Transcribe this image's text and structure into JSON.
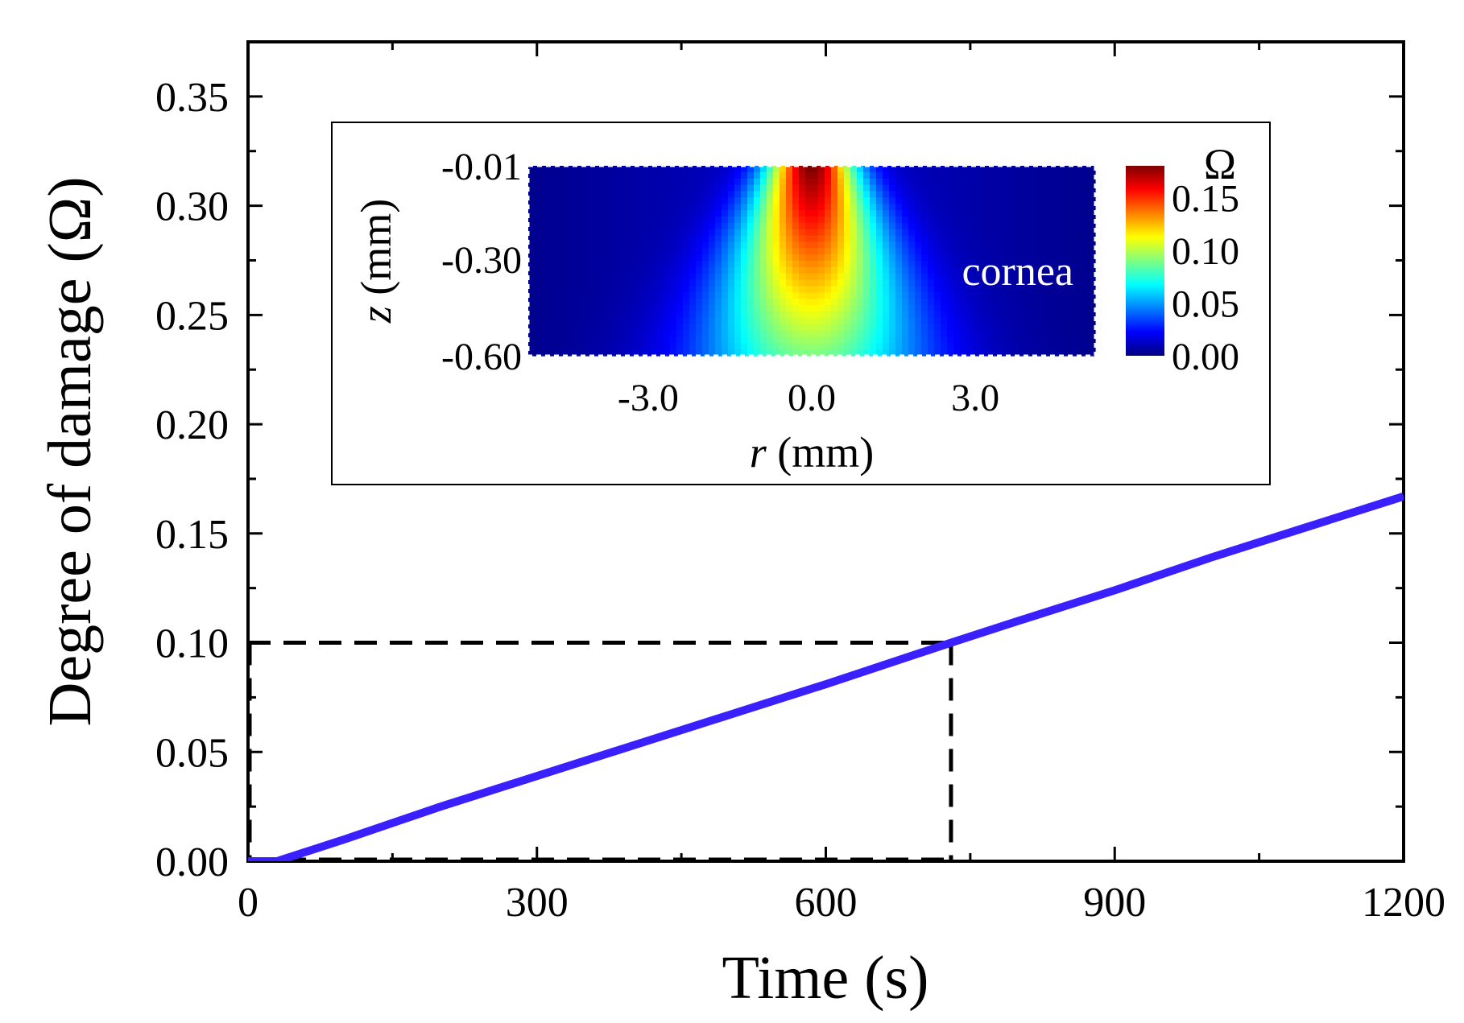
{
  "chart_data": {
    "type": "line",
    "title": "",
    "xlabel": "Time (s)",
    "ylabel": "Degree of damage (Ω)",
    "xlim": [
      0,
      1200
    ],
    "ylim": [
      0,
      0.375
    ],
    "xticks": [
      0,
      300,
      600,
      900,
      1200
    ],
    "xtick_labels": [
      "0",
      "300",
      "600",
      "900",
      "1200"
    ],
    "yticks": [
      0,
      0.05,
      0.1,
      0.15,
      0.2,
      0.25,
      0.3,
      0.35
    ],
    "ytick_labels": [
      "0.00",
      "0.05",
      "0.10",
      "0.15",
      "0.20",
      "0.25",
      "0.30",
      "0.35"
    ],
    "grid": false,
    "series": [
      {
        "name": "Degree of damage",
        "color": "#3a1fff",
        "x": [
          0,
          30,
          100,
          200,
          300,
          400,
          500,
          600,
          730,
          800,
          900,
          1000,
          1100,
          1200
        ],
        "y": [
          0,
          0,
          0.01,
          0.025,
          0.039,
          0.053,
          0.067,
          0.081,
          0.1,
          0.11,
          0.124,
          0.139,
          0.153,
          0.167
        ]
      }
    ],
    "reference_lines": {
      "color": "#000000",
      "y_value": 0.1,
      "x_value": 730
    },
    "inset": {
      "type": "heatmap",
      "label": "cornea",
      "xlabel_italic": "r",
      "xlabel_rest": " (mm)",
      "ylabel_italic": "z",
      "ylabel_rest": " (mm)",
      "xlim": [
        -5.2,
        5.2
      ],
      "ylim": [
        -0.6,
        -0.01
      ],
      "xticks": [
        -3.0,
        0.0,
        3.0
      ],
      "xtick_labels": [
        "-3.0",
        "0.0",
        "3.0"
      ],
      "yticks": [
        -0.01,
        -0.3,
        -0.6
      ],
      "ytick_labels": [
        "-0.01",
        "-0.30",
        "-0.60"
      ],
      "colorbar": {
        "title": "Ω",
        "ticks": [
          0,
          0.05,
          0.1,
          0.15
        ],
        "tick_labels": [
          "0.00",
          "0.05",
          "0.10",
          "0.15"
        ],
        "range": [
          0,
          0.18
        ],
        "colors": [
          "#00007f",
          "#0000ff",
          "#0080ff",
          "#00ffff",
          "#80ff80",
          "#ffff00",
          "#ff8000",
          "#ff0000",
          "#7f0000"
        ]
      },
      "max_value": 0.17
    }
  }
}
